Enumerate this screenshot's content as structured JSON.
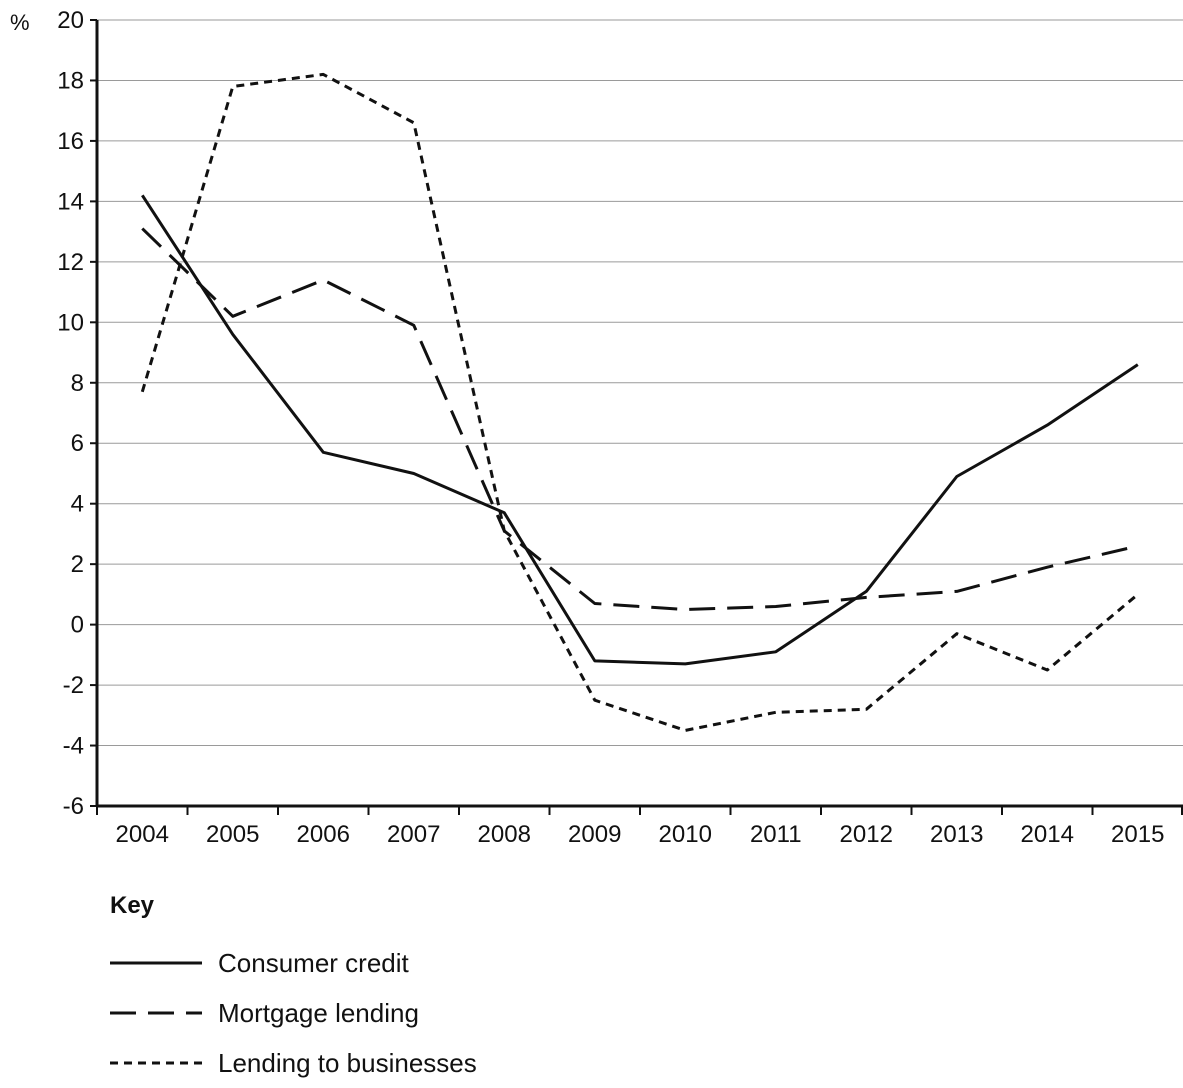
{
  "chart_data": {
    "type": "line",
    "title": "",
    "xlabel": "",
    "ylabel": "%",
    "ylim": [
      -6,
      20
    ],
    "yticks": [
      -6,
      -4,
      -2,
      0,
      2,
      4,
      6,
      8,
      10,
      12,
      14,
      16,
      18,
      20
    ],
    "categories": [
      "2004",
      "2005",
      "2006",
      "2007",
      "2008",
      "2009",
      "2010",
      "2011",
      "2012",
      "2013",
      "2014",
      "2015"
    ],
    "grid": "horizontal",
    "legend_title": "Key",
    "legend_position": "bottom-left",
    "series": [
      {
        "name": "Consumer credit",
        "style": "solid",
        "values": [
          14.2,
          9.6,
          5.7,
          5.0,
          3.7,
          -1.2,
          -1.3,
          -0.9,
          1.1,
          4.9,
          6.6,
          8.6
        ]
      },
      {
        "name": "Mortgage lending",
        "style": "long-dash",
        "values": [
          13.1,
          10.2,
          11.4,
          9.9,
          3.1,
          0.7,
          0.5,
          0.6,
          0.9,
          1.1,
          1.9,
          2.6
        ]
      },
      {
        "name": "Lending to businesses",
        "style": "short-dash",
        "values": [
          7.7,
          17.8,
          18.2,
          16.6,
          3.1,
          -2.5,
          -3.5,
          -2.9,
          -2.8,
          -0.3,
          -1.5,
          1.0
        ]
      }
    ],
    "colors": {
      "line": "#111111",
      "grid": "#9a9a9a",
      "axis": "#111111"
    }
  }
}
